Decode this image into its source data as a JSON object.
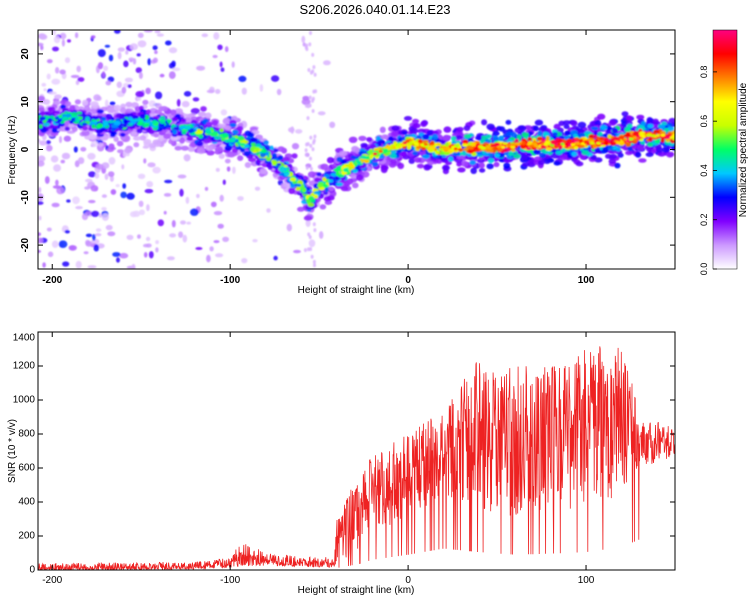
{
  "title": "S206.2026.040.01.14.E23",
  "chart_data": [
    {
      "type": "heatmap",
      "xlabel": "Height of straight line (km)",
      "ylabel": "Frequency (Hz)",
      "xlim": [
        -208,
        150
      ],
      "ylim": [
        -25,
        25
      ],
      "xticks": [
        -200,
        -100,
        0,
        100
      ],
      "yticks": [
        -20,
        -10,
        0,
        10,
        20
      ],
      "colorbar": {
        "label": "Normalized spectral amplitude",
        "ticks": [
          0.0,
          0.2,
          0.4,
          0.6,
          0.8
        ],
        "range": [
          0,
          0.97
        ],
        "colors": [
          "#ffffff",
          "#cc99ff",
          "#8000ff",
          "#0000ff",
          "#00c8ff",
          "#00ff66",
          "#c8ff00",
          "#ffff00",
          "#ff8000",
          "#ff0000",
          "#ff0080"
        ]
      },
      "ridge": {
        "x": [
          -208,
          -190,
          -180,
          -165,
          -150,
          -135,
          -120,
          -105,
          -90,
          -80,
          -70,
          -60,
          -55,
          -50,
          -45,
          -40,
          -30,
          -20,
          -10,
          0,
          10,
          20,
          40,
          60,
          80,
          100,
          120,
          130,
          140,
          150
        ],
        "y": [
          6,
          7,
          6,
          5,
          6,
          5,
          4,
          3,
          1,
          -1,
          -4,
          -8,
          -11,
          -8,
          -7,
          -5,
          -3,
          -1,
          0,
          1.5,
          1,
          0,
          0.5,
          1,
          1,
          1.5,
          2,
          3,
          3,
          2.5
        ]
      }
    },
    {
      "type": "line",
      "xlabel": "Height of straight line (km)",
      "ylabel": "SNR (10 * v/v)",
      "xlim": [
        -208,
        150
      ],
      "ylim": [
        0,
        1400
      ],
      "xticks": [
        -200,
        -100,
        0,
        100
      ],
      "yticks": [
        0,
        200,
        400,
        600,
        800,
        1000,
        1200,
        1400
      ],
      "series": [
        {
          "name": "SNR",
          "color": "#ee2222",
          "envelope_x": [
            -208,
            -160,
            -120,
            -100,
            -95,
            -80,
            -60,
            -42,
            -40,
            -30,
            -20,
            0,
            20,
            40,
            60,
            80,
            100,
            120,
            130,
            150
          ],
          "envelope_y": [
            40,
            45,
            50,
            70,
            180,
            110,
            75,
            80,
            300,
            520,
            680,
            800,
            950,
            1250,
            1200,
            1200,
            1300,
            1380,
            900,
            850
          ],
          "floor_y": [
            0,
            0,
            5,
            15,
            20,
            25,
            20,
            15,
            40,
            100,
            200,
            300,
            420,
            350,
            300,
            320,
            350,
            450,
            600,
            660
          ]
        }
      ]
    }
  ]
}
